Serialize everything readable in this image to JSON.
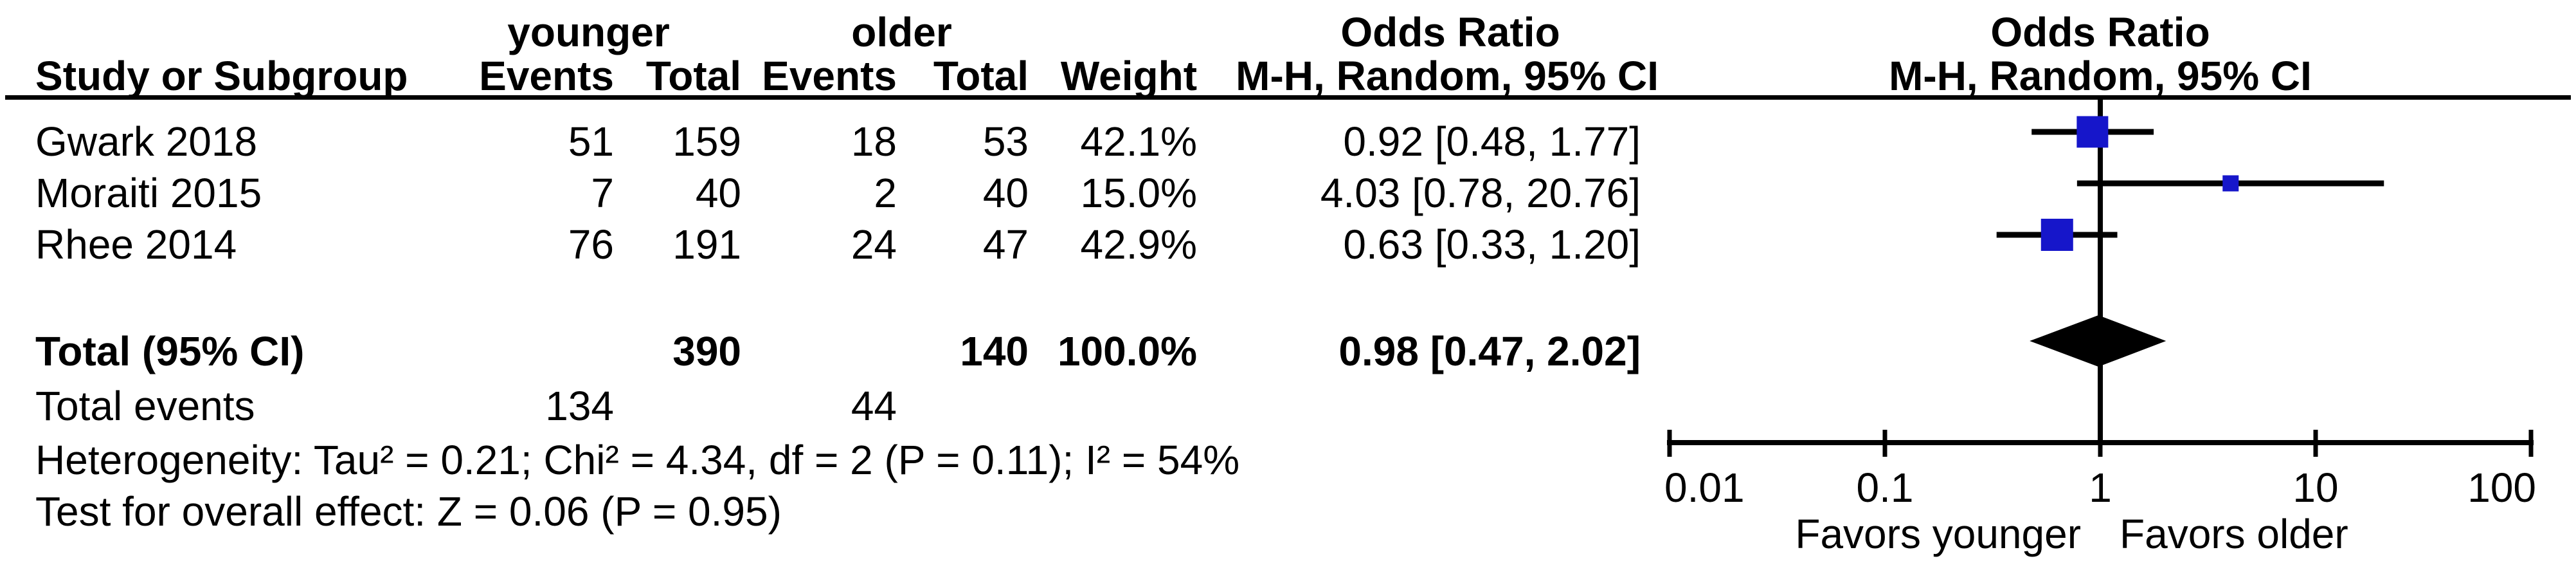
{
  "table": {
    "group_headers": {
      "group1": "younger",
      "group2": "older",
      "or_text_col": "Odds Ratio",
      "or_plot_col": "Odds Ratio"
    },
    "columns": {
      "study": "Study or Subgroup",
      "events1": "Events",
      "total1": "Total",
      "events2": "Events",
      "total2": "Total",
      "weight": "Weight",
      "mh_text": "M-H, Random, 95% CI",
      "mh_plot": "M-H, Random, 95% CI"
    },
    "studies": [
      {
        "name": "Gwark 2018",
        "events1": "51",
        "total1": "159",
        "events2": "18",
        "total2": "53",
        "weight": "42.1%",
        "or_ci": "0.92 [0.48, 1.77]"
      },
      {
        "name": "Moraiti 2015",
        "events1": "7",
        "total1": "40",
        "events2": "2",
        "total2": "40",
        "weight": "15.0%",
        "or_ci": "4.03 [0.78, 20.76]"
      },
      {
        "name": "Rhee 2014",
        "events1": "76",
        "total1": "191",
        "events2": "24",
        "total2": "47",
        "weight": "42.9%",
        "or_ci": "0.63 [0.33, 1.20]"
      }
    ],
    "total_row": {
      "label": "Total (95% CI)",
      "total1": "390",
      "total2": "140",
      "weight": "100.0%",
      "or_ci": "0.98 [0.47, 2.02]"
    },
    "total_events_row": {
      "label": "Total events",
      "events1": "134",
      "events2": "44"
    },
    "heterogeneity": "Heterogeneity: Tau² = 0.21; Chi² = 4.34, df = 2 (P = 0.11); I² = 54%",
    "overall_effect": "Test for overall effect: Z = 0.06 (P = 0.95)"
  },
  "chart_data": {
    "type": "forest",
    "scale": "log10",
    "xlim": [
      0.01,
      100
    ],
    "axis_ticks": [
      0.01,
      0.1,
      1,
      10,
      100
    ],
    "null_line": 1,
    "studies": [
      {
        "name": "Gwark 2018",
        "or": 0.92,
        "ci_low": 0.48,
        "ci_high": 1.77,
        "weight_pct": 42.1
      },
      {
        "name": "Moraiti 2015",
        "or": 4.03,
        "ci_low": 0.78,
        "ci_high": 20.76,
        "weight_pct": 15.0
      },
      {
        "name": "Rhee 2014",
        "or": 0.63,
        "ci_low": 0.33,
        "ci_high": 1.2,
        "weight_pct": 42.9
      }
    ],
    "total": {
      "or": 0.98,
      "ci_low": 0.47,
      "ci_high": 2.02,
      "weight_pct": 100.0
    },
    "favors_left": "Favors younger",
    "favors_right": "Favors older",
    "marker_color": "#1616CA",
    "line_color": "#000000",
    "legend_position": "none",
    "grid": false
  }
}
